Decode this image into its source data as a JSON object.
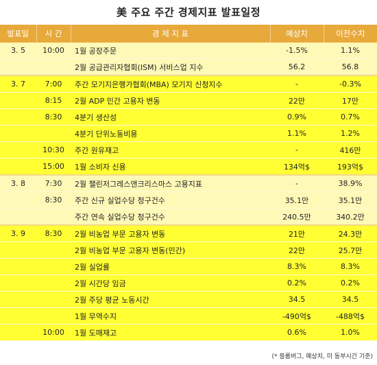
{
  "title": "美 주요 주간 경제지표 발표일정",
  "headers": {
    "date": "발표일",
    "time": "시 간",
    "name": "경 제 지 표",
    "expected": "예상치",
    "previous": "이전수치"
  },
  "rows": [
    {
      "date": "3. 5",
      "time": "10:00",
      "name": "1월 공장주문",
      "expected": "-1.5%",
      "previous": "1.1%"
    },
    {
      "date": "",
      "time": "",
      "name": "2월 공급관리자협회(ISM) 서비스업 지수",
      "expected": "56.2",
      "previous": "56.8"
    },
    {
      "date": "3. 7",
      "time": "7:00",
      "name": "주간 모기지은행가협회(MBA) 모기지 신청지수",
      "expected": "-",
      "previous": "-0.3%"
    },
    {
      "date": "",
      "time": "8:15",
      "name": "2월 ADP 민간 고용자 변동",
      "expected": "22만",
      "previous": "17만"
    },
    {
      "date": "",
      "time": "8:30",
      "name": "4분기 생산성",
      "expected": "0.9%",
      "previous": "0.7%"
    },
    {
      "date": "",
      "time": "",
      "name": "4분기 단위노동비용",
      "expected": "1.1%",
      "previous": "1.2%"
    },
    {
      "date": "",
      "time": "10:30",
      "name": "주간 원유재고",
      "expected": "-",
      "previous": "416만"
    },
    {
      "date": "",
      "time": "15:00",
      "name": "1월 소비자 신용",
      "expected": "134억$",
      "previous": "193억$"
    },
    {
      "date": "3. 8",
      "time": "7:30",
      "name": "2월 챌린저그레스앤크리스마스 고용지표",
      "expected": "-",
      "previous": "38.9%"
    },
    {
      "date": "",
      "time": "8:30",
      "name": "주간 신규 실업수당 청구건수",
      "expected": "35.1만",
      "previous": "35.1만"
    },
    {
      "date": "",
      "time": "",
      "name": "주간 연속 실업수당 청구건수",
      "expected": "240.5만",
      "previous": "340.2만"
    },
    {
      "date": "3. 9",
      "time": "8:30",
      "name": "2월 비농업 부문 고용자 변동",
      "expected": "21만",
      "previous": "24.3만"
    },
    {
      "date": "",
      "time": "",
      "name": "2월 비농업 부문 고용자 변동(민간)",
      "expected": "22만",
      "previous": "25.7만"
    },
    {
      "date": "",
      "time": "",
      "name": "2월 실업률",
      "expected": "8.3%",
      "previous": "8.3%"
    },
    {
      "date": "",
      "time": "",
      "name": "2월 시간당 임금",
      "expected": "0.2%",
      "previous": "0.2%"
    },
    {
      "date": "",
      "time": "",
      "name": "2월 주당 평균 노동시간",
      "expected": "34.5",
      "previous": "34.5"
    },
    {
      "date": "",
      "time": "",
      "name": "1월 무역수지",
      "expected": "-490억$",
      "previous": "-488억$"
    },
    {
      "date": "",
      "time": "10:00",
      "name": "1월 도매재고",
      "expected": "0.6%",
      "previous": "1.0%"
    }
  ],
  "footnote": "(* 블룸버그, 예상치, 미 동부시간 기준)"
}
